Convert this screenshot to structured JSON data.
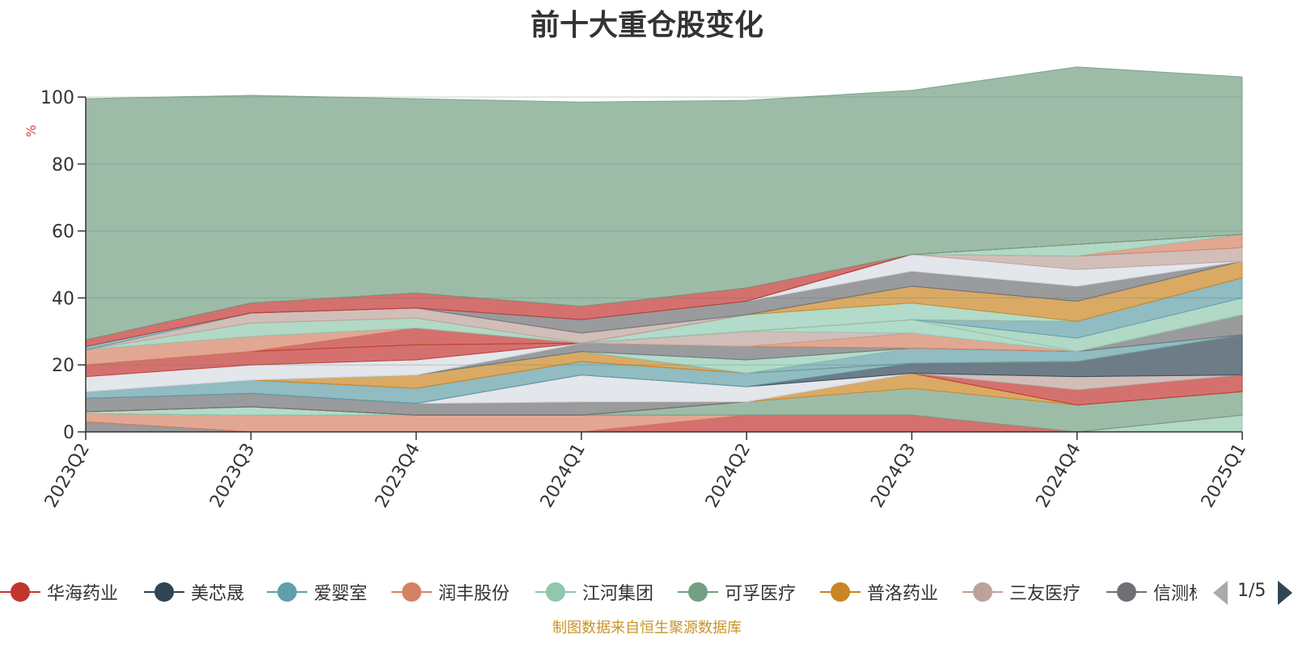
{
  "chart_data": {
    "type": "area",
    "title": "前十大重仓股变化",
    "ylabel": "%",
    "ylim": [
      0,
      100
    ],
    "yticks": [
      0,
      20,
      40,
      60,
      80,
      100
    ],
    "categories": [
      "2023Q2",
      "2023Q3",
      "2023Q4",
      "2024Q1",
      "2024Q2",
      "2024Q3",
      "2024Q4",
      "2025Q1"
    ],
    "series": [
      {
        "name": "",
        "color": "#6e7074",
        "values": [
          3,
          0,
          0,
          0,
          0,
          0,
          0,
          0
        ]
      },
      {
        "name": "",
        "color": "#91c7ae",
        "values": [
          0,
          0,
          0,
          0,
          0,
          0,
          0,
          5
        ]
      },
      {
        "name": "华海药业",
        "color": "#c23531",
        "values": [
          0,
          0,
          0,
          0,
          5,
          5,
          0,
          0
        ]
      },
      {
        "name": "润丰股份",
        "color": "#d48265",
        "values": [
          2.5,
          5,
          5,
          5,
          0,
          0,
          0,
          0
        ]
      },
      {
        "name": "可孚医疗",
        "color": "#749f83",
        "values": [
          0,
          0,
          0,
          0,
          4,
          8,
          8,
          7
        ]
      },
      {
        "name": "江河集团",
        "color": "#91ccb4",
        "values": [
          0.5,
          2.5,
          0,
          0,
          0,
          0,
          0,
          0
        ]
      },
      {
        "name": "普洛药业",
        "color": "#ca8622",
        "values": [
          0,
          0,
          0,
          0,
          0,
          4.5,
          0,
          0
        ]
      },
      {
        "name": "",
        "color": "#c23531",
        "values": [
          0,
          0,
          0,
          0,
          0,
          0,
          4.5,
          5
        ]
      },
      {
        "name": "信测标准",
        "color": "#6e7074",
        "values": [
          4,
          4,
          3.5,
          4,
          0,
          0,
          0,
          0
        ]
      },
      {
        "name": "三友医疗",
        "color": "#bda29a",
        "values": [
          0,
          0,
          0,
          0,
          0,
          0,
          4,
          0
        ]
      },
      {
        "name": "",
        "color": "#d7dbe3",
        "values": [
          0,
          0,
          0,
          8,
          4.5,
          0,
          0,
          0
        ]
      },
      {
        "name": "美芯晟",
        "color": "#2f4554",
        "values": [
          0,
          0,
          0,
          0,
          0,
          3,
          4.5,
          12
        ]
      },
      {
        "name": "爱婴室",
        "color": "#61a0a8",
        "values": [
          2,
          4,
          4.5,
          4,
          4,
          0,
          0,
          0
        ]
      },
      {
        "name": "",
        "color": "#d48265",
        "values": [
          0,
          0,
          0,
          0,
          0,
          0,
          0,
          0
        ]
      },
      {
        "name": "",
        "color": "#ca8622",
        "values": [
          0,
          0,
          4,
          3,
          0,
          0,
          0,
          0
        ]
      },
      {
        "name": "",
        "color": "#61a0a8",
        "values": [
          0,
          0,
          0,
          0,
          0,
          4.5,
          3,
          0
        ]
      },
      {
        "name": "",
        "color": "#6e7074",
        "values": [
          0,
          0,
          0,
          0,
          0,
          0,
          0,
          6
        ]
      },
      {
        "name": "",
        "color": "#91ccb4",
        "values": [
          0,
          0,
          0,
          0,
          4,
          0,
          0,
          0
        ]
      },
      {
        "name": "",
        "color": "#6e7074",
        "values": [
          0,
          0,
          0,
          2.5,
          4,
          0,
          0,
          0
        ]
      },
      {
        "name": "",
        "color": "#d48265",
        "values": [
          0,
          0,
          0,
          0,
          0,
          4.5,
          0,
          0
        ]
      },
      {
        "name": "",
        "color": "#bda29a",
        "values": [
          0,
          0,
          0,
          0,
          4.5,
          0,
          0,
          0
        ]
      },
      {
        "name": "",
        "color": "#91ccb4",
        "values": [
          0,
          0,
          0,
          0,
          0,
          4,
          0,
          0
        ]
      },
      {
        "name": "",
        "color": "#91c7ae",
        "values": [
          0,
          0,
          0,
          0,
          0,
          0,
          4,
          5
        ]
      },
      {
        "name": "",
        "color": "#61a0a8",
        "values": [
          0,
          0,
          0,
          0,
          0,
          0,
          5,
          6
        ]
      },
      {
        "name": "",
        "color": "#d7dbe3",
        "values": [
          4.5,
          4.5,
          4.5,
          0,
          0,
          0,
          0,
          0
        ]
      },
      {
        "name": "",
        "color": "#c23531",
        "values": [
          3.5,
          4,
          4.5,
          0,
          0,
          0,
          0,
          0
        ]
      },
      {
        "name": "",
        "color": "#91ccb4",
        "values": [
          0,
          0,
          0,
          0,
          5,
          5,
          0,
          0
        ]
      },
      {
        "name": "",
        "color": "#ca8622",
        "values": [
          0,
          0,
          0,
          0,
          0,
          5,
          6,
          5
        ]
      },
      {
        "name": "",
        "color": "#c23531",
        "values": [
          0,
          0,
          5,
          0,
          0,
          0,
          0,
          0
        ]
      },
      {
        "name": "",
        "color": "#d48265",
        "values": [
          4.5,
          4.5,
          0,
          0,
          0,
          0,
          0,
          0
        ]
      },
      {
        "name": "",
        "color": "#91c7ae",
        "values": [
          0,
          4,
          3,
          0,
          0,
          0,
          0,
          0
        ]
      },
      {
        "name": "",
        "color": "#bda29a",
        "values": [
          0,
          3,
          3,
          3,
          0,
          0,
          0,
          0
        ]
      },
      {
        "name": "",
        "color": "#6e7074",
        "values": [
          0,
          0,
          0,
          4,
          4,
          4.5,
          4.5,
          0
        ]
      },
      {
        "name": "",
        "color": "#d7dbe3",
        "values": [
          0,
          0,
          0,
          0,
          0,
          5,
          5,
          0
        ]
      },
      {
        "name": "",
        "color": "#bda29a",
        "values": [
          0,
          0,
          0,
          0,
          0,
          0,
          4,
          4
        ]
      },
      {
        "name": "",
        "color": "#d48265",
        "values": [
          0,
          0,
          0,
          0,
          0,
          0,
          0,
          4
        ]
      },
      {
        "name": "",
        "color": "#91c7ae",
        "values": [
          0,
          0,
          0,
          0,
          0,
          0,
          3.5,
          0
        ]
      },
      {
        "name": "",
        "color": "#61a0a8",
        "values": [
          1,
          0,
          0,
          0,
          0,
          0,
          0,
          0
        ]
      },
      {
        "name": "",
        "color": "#c23531",
        "values": [
          2,
          3,
          4.5,
          4,
          4,
          0,
          0,
          0
        ]
      },
      {
        "name": "",
        "color": "#749f83",
        "values": [
          72,
          62,
          58,
          61,
          56,
          49,
          53,
          47
        ]
      }
    ],
    "legend_placement": "bottom",
    "grid": true
  },
  "legend": {
    "items": [
      {
        "name": "华海药业",
        "color": "#c23531"
      },
      {
        "name": "美芯晟",
        "color": "#2f4554"
      },
      {
        "name": "爱婴室",
        "color": "#61a0a8"
      },
      {
        "name": "润丰股份",
        "color": "#d48265"
      },
      {
        "name": "江河集团",
        "color": "#91c7ae"
      },
      {
        "name": "可孚医疗",
        "color": "#749f83"
      },
      {
        "name": "普洛药业",
        "color": "#ca8622"
      },
      {
        "name": "三友医疗",
        "color": "#bda29a"
      },
      {
        "name": "信测标准",
        "color": "#6e7074"
      }
    ],
    "page_text": "1/5"
  },
  "footer": {
    "source": "制图数据来自恒生聚源数据库"
  }
}
